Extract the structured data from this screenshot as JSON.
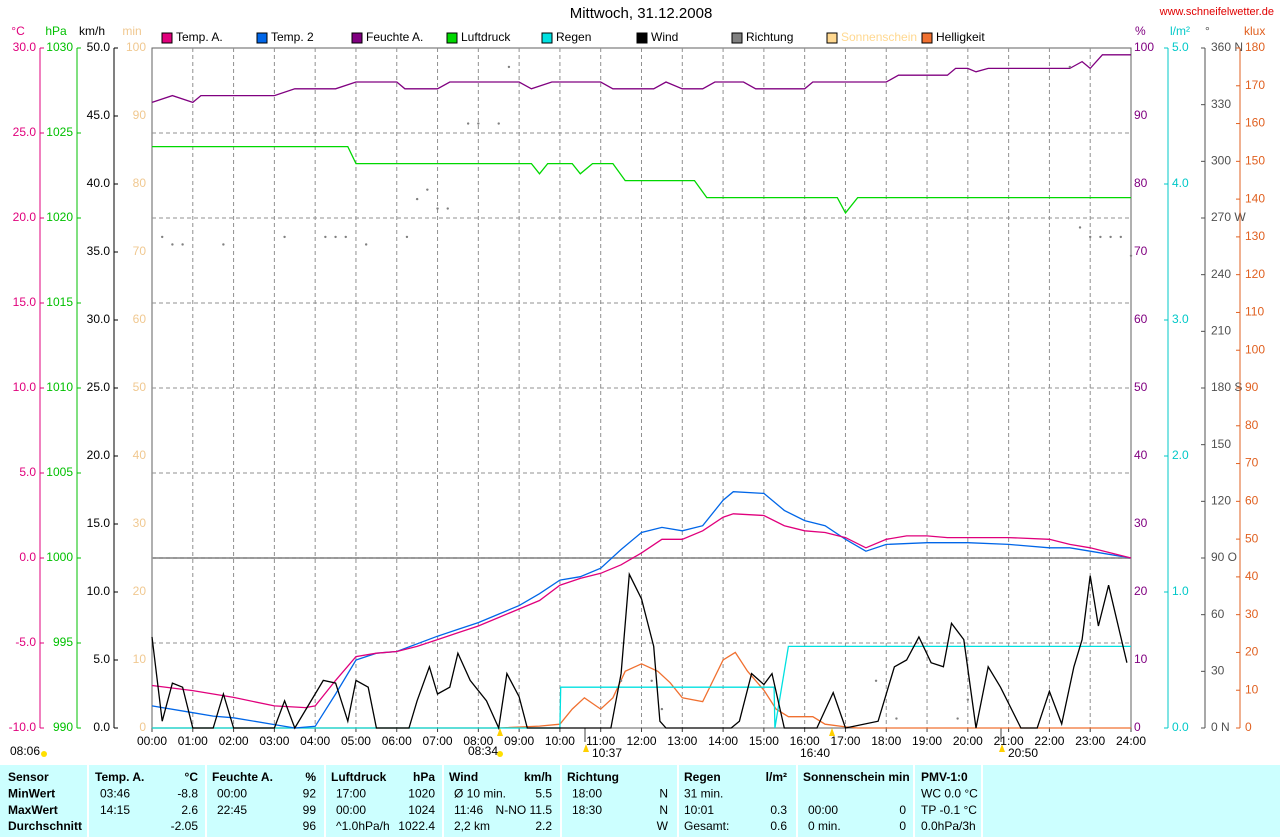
{
  "chart_data": {
    "type": "line",
    "title": "Mittwoch, 31.12.2008",
    "source": "www.schneifelwetter.de",
    "xlim": [
      0,
      24
    ],
    "xticks": [
      {
        "value": 0,
        "label": "00:00"
      },
      {
        "value": 1,
        "label": "01:00"
      },
      {
        "value": 2,
        "label": "02:00"
      },
      {
        "value": 3,
        "label": "03:00"
      },
      {
        "value": 4,
        "label": "04:00"
      },
      {
        "value": 5,
        "label": "05:00"
      },
      {
        "value": 6,
        "label": "06:00"
      },
      {
        "value": 7,
        "label": "07:00"
      },
      {
        "value": 8,
        "label": "08:00"
      },
      {
        "value": 9,
        "label": "09:00"
      },
      {
        "value": 10,
        "label": "10:00"
      },
      {
        "value": 11,
        "label": "11:00"
      },
      {
        "value": 12,
        "label": "12:00"
      },
      {
        "value": 13,
        "label": "13:00"
      },
      {
        "value": 14,
        "label": "14:00"
      },
      {
        "value": 15,
        "label": "15:00"
      },
      {
        "value": 16,
        "label": "16:00"
      },
      {
        "value": 17,
        "label": "17:00"
      },
      {
        "value": 18,
        "label": "18:00"
      },
      {
        "value": 19,
        "label": "19:00"
      },
      {
        "value": 20,
        "label": "20:00"
      },
      {
        "value": 21,
        "label": "21:00"
      },
      {
        "value": 22,
        "label": "22:00"
      },
      {
        "value": 23,
        "label": "23:00"
      },
      {
        "value": 24,
        "label": "24:00"
      }
    ],
    "grid": true,
    "axes": {
      "temp": {
        "unit": "°C",
        "color": "#e0007c",
        "lim": [
          -10,
          30
        ],
        "ticks": [
          {
            "value": -10,
            "label": "-10.0"
          },
          {
            "value": -5,
            "label": "-5.0"
          },
          {
            "value": 0,
            "label": "0.0"
          },
          {
            "value": 5,
            "label": "5.0"
          },
          {
            "value": 10,
            "label": "10.0"
          },
          {
            "value": 15,
            "label": "15.0"
          },
          {
            "value": 20,
            "label": "20.0"
          },
          {
            "value": 25,
            "label": "25.0"
          },
          {
            "value": 30,
            "label": "30.0"
          }
        ]
      },
      "press": {
        "unit": "hPa",
        "color": "#00c000",
        "lim": [
          990,
          1030
        ],
        "ticks": [
          990,
          995,
          1000,
          1005,
          1010,
          1015,
          1020,
          1025,
          1030
        ]
      },
      "wind": {
        "unit": "km/h",
        "color": "#000000",
        "lim": [
          0,
          50
        ],
        "ticks": [
          {
            "value": 0,
            "label": "0.0"
          },
          {
            "value": 5,
            "label": "5.0"
          },
          {
            "value": 10,
            "label": "10.0"
          },
          {
            "value": 15,
            "label": "15.0"
          },
          {
            "value": 20,
            "label": "20.0"
          },
          {
            "value": 25,
            "label": "25.0"
          },
          {
            "value": 30,
            "label": "30.0"
          },
          {
            "value": 35,
            "label": "35.0"
          },
          {
            "value": 40,
            "label": "40.0"
          },
          {
            "value": 45,
            "label": "45.0"
          },
          {
            "value": 50,
            "label": "50.0"
          }
        ]
      },
      "sun": {
        "unit": "min",
        "color": "#f0c890",
        "lim": [
          0,
          100
        ],
        "ticks": [
          0,
          10,
          20,
          30,
          40,
          50,
          60,
          70,
          80,
          90,
          100
        ]
      },
      "hum": {
        "unit": "%",
        "color": "#800080",
        "lim": [
          0,
          100
        ],
        "ticks": [
          0,
          10,
          20,
          30,
          40,
          50,
          60,
          70,
          80,
          90,
          100
        ]
      },
      "rain": {
        "unit": "l/m²",
        "color": "#00c8c8",
        "lim": [
          0,
          5
        ],
        "ticks": [
          {
            "value": 0,
            "label": "0.0"
          },
          {
            "value": 1,
            "label": "1.0"
          },
          {
            "value": 2,
            "label": "2.0"
          },
          {
            "value": 3,
            "label": "3.0"
          },
          {
            "value": 4,
            "label": "4.0"
          },
          {
            "value": 5,
            "label": "5.0"
          }
        ]
      },
      "dir": {
        "unit": "°",
        "color": "#505050",
        "lim": [
          0,
          360
        ],
        "ticks": [
          {
            "value": 0,
            "label": "0 N"
          },
          30,
          60,
          {
            "value": 90,
            "label": "90 O"
          },
          120,
          150,
          {
            "value": 180,
            "label": "180 S"
          },
          210,
          240,
          {
            "value": 270,
            "label": "270 W"
          },
          300,
          330,
          {
            "value": 360,
            "label": "360 N"
          }
        ]
      },
      "lux": {
        "unit": "klux",
        "color": "#e06020",
        "lim": [
          0,
          180
        ],
        "ticks": [
          0,
          10,
          20,
          30,
          40,
          50,
          60,
          70,
          80,
          90,
          100,
          110,
          120,
          130,
          140,
          150,
          160,
          170,
          180
        ]
      }
    },
    "series": [
      {
        "name": "Temp. A.",
        "color": "#e0007c",
        "axis": "temp",
        "style": "line",
        "x": [
          0,
          1,
          2,
          3,
          3.76,
          4,
          4.5,
          5,
          5.5,
          6,
          6.5,
          7,
          7.5,
          8,
          8.5,
          9,
          9.5,
          10,
          10.5,
          11,
          11.5,
          12,
          12.5,
          13,
          13.5,
          14,
          14.25,
          15,
          15.5,
          16,
          16.5,
          17,
          17.5,
          18,
          18.5,
          19,
          19.5,
          20,
          21,
          22,
          22.5,
          23,
          24
        ],
        "values": [
          -7.5,
          -7.8,
          -8.2,
          -8.7,
          -8.8,
          -8.7,
          -7.2,
          -5.8,
          -5.6,
          -5.5,
          -5.2,
          -4.8,
          -4.4,
          -4.0,
          -3.5,
          -3.0,
          -2.5,
          -1.6,
          -1.2,
          -0.9,
          -0.4,
          0.3,
          1.1,
          1.1,
          1.6,
          2.4,
          2.6,
          2.5,
          1.9,
          1.6,
          1.5,
          1.2,
          0.6,
          1.1,
          1.3,
          1.3,
          1.2,
          1.2,
          1.2,
          1.1,
          0.8,
          0.6,
          0.0
        ]
      },
      {
        "name": "Temp. 2",
        "color": "#0066e8",
        "axis": "temp",
        "style": "line",
        "x": [
          0,
          1,
          1.5,
          2,
          3,
          3.5,
          4,
          4.5,
          5,
          5.5,
          6,
          7,
          7.5,
          8,
          8.5,
          9,
          9.5,
          10,
          10.5,
          11,
          11.5,
          12,
          12.5,
          13,
          13.5,
          14,
          14.25,
          15,
          15.5,
          16,
          16.5,
          17,
          17.5,
          18,
          19,
          20,
          21,
          22,
          22.5,
          23,
          24
        ],
        "values": [
          -8.7,
          -9.1,
          -9.3,
          -9.4,
          -9.8,
          -10.0,
          -9.9,
          -8.0,
          -6.0,
          -5.6,
          -5.5,
          -4.6,
          -4.2,
          -3.8,
          -3.3,
          -2.8,
          -2.1,
          -1.3,
          -1.1,
          -0.6,
          0.5,
          1.5,
          1.8,
          1.6,
          1.9,
          3.4,
          3.9,
          3.8,
          2.8,
          2.2,
          1.9,
          1.1,
          0.4,
          0.8,
          0.9,
          0.9,
          0.8,
          0.6,
          0.6,
          0.4,
          0.0
        ]
      },
      {
        "name": "Feuchte A.",
        "color": "#800080",
        "axis": "hum",
        "style": "line",
        "x": [
          0,
          0.5,
          1,
          1.2,
          3,
          3.5,
          4.5,
          5,
          6,
          6.2,
          7,
          7.3,
          9,
          9.3,
          9.8,
          11,
          11.3,
          12.3,
          12.6,
          13,
          13.5,
          13.8,
          14.5,
          14.8,
          16,
          16.2,
          18,
          18.3,
          19.5,
          19.7,
          20,
          20.2,
          20.5,
          22.5,
          22.8,
          23,
          23.3,
          24
        ],
        "values": [
          92,
          93,
          92,
          93,
          93,
          94,
          94,
          95,
          95,
          94,
          94,
          95,
          95,
          94,
          95,
          95,
          94,
          94,
          95,
          94,
          94,
          95,
          95,
          94,
          94,
          95,
          95,
          96,
          96,
          97,
          97,
          96.5,
          97,
          97,
          98,
          97,
          99,
          99
        ]
      },
      {
        "name": "Luftdruck",
        "color": "#00d800",
        "axis": "press",
        "style": "line",
        "x": [
          0,
          4.8,
          5,
          9.3,
          9.5,
          9.7,
          10.3,
          10.5,
          10.8,
          11.3,
          11.6,
          13.3,
          13.6,
          16.8,
          17,
          17.3,
          24
        ],
        "values": [
          1024.2,
          1024.2,
          1023.2,
          1023.2,
          1022.6,
          1023.2,
          1023.2,
          1022.6,
          1023.2,
          1023.2,
          1022.2,
          1022.2,
          1021.2,
          1021.2,
          1020.3,
          1021.2,
          1021.2
        ]
      },
      {
        "name": "Regen",
        "color": "#00e0e0",
        "axis": "rain",
        "style": "line",
        "x": [
          0,
          10,
          10.02,
          15.25,
          15.27,
          15.6,
          24
        ],
        "values": [
          0,
          0,
          0.3,
          0.3,
          0,
          0.6,
          0.6
        ]
      },
      {
        "name": "Wind",
        "color": "#000000",
        "axis": "wind",
        "style": "line",
        "x": [
          0,
          0.25,
          0.5,
          0.75,
          1,
          1.5,
          1.75,
          2,
          3,
          3.25,
          3.5,
          4.2,
          4.5,
          4.8,
          5,
          5.3,
          5.5,
          6.3,
          6.5,
          6.8,
          7,
          7.3,
          7.5,
          7.8,
          8.2,
          8.5,
          8.7,
          9,
          9.2,
          11.25,
          11.5,
          11.7,
          12,
          12.3,
          12.45,
          12.6,
          14.2,
          14.4,
          14.7,
          15,
          15.2,
          15.5,
          16.3,
          16.7,
          17,
          17.8,
          18.2,
          18.5,
          18.8,
          19.1,
          19.4,
          19.6,
          19.9,
          20.2,
          20.5,
          20.8,
          21.3,
          21.7,
          22,
          22.3,
          22.6,
          22.8,
          23,
          23.2,
          23.45,
          23.9
        ],
        "values": [
          6.7,
          0.5,
          3.3,
          3,
          0,
          0,
          2.5,
          0,
          0,
          2,
          0,
          3.5,
          3.3,
          0.5,
          3.5,
          3,
          0,
          0,
          2,
          4.5,
          2.5,
          3,
          5.5,
          3.5,
          2,
          0,
          4,
          2.3,
          0,
          0,
          4,
          11.3,
          9.5,
          6,
          0.5,
          0,
          0,
          0.5,
          4,
          3.2,
          4,
          0,
          0,
          2.6,
          0,
          0.5,
          4.5,
          5,
          6.7,
          4.8,
          4.5,
          7.7,
          6.5,
          0,
          4.5,
          3,
          0,
          0,
          2.7,
          0.3,
          4.5,
          6.5,
          11.2,
          7.5,
          10.5,
          4.8
        ]
      },
      {
        "name": "Richtung",
        "color": "#808080",
        "axis": "dir",
        "style": "dots",
        "x": [
          0.25,
          0.5,
          0.75,
          1.75,
          3.25,
          4.25,
          4.5,
          4.75,
          5.25,
          6.25,
          6.5,
          6.75,
          7,
          7.25,
          7.75,
          8,
          8.5,
          8.75,
          11.5,
          12.25,
          12.5,
          17.75,
          18.25,
          19.75,
          20,
          22.5,
          22.75,
          23,
          23.25,
          23.5,
          23.75,
          24
        ],
        "values": [
          260,
          256,
          256,
          256,
          260,
          260,
          260,
          260,
          256,
          260,
          280,
          285,
          275,
          275,
          320,
          320,
          320,
          350,
          25,
          25,
          10,
          25,
          5,
          5,
          15,
          350,
          265,
          260,
          260,
          260,
          260,
          250
        ]
      },
      {
        "name": "Sonnenschein",
        "color": "#ffd890"
      },
      {
        "name": "Helligkeit",
        "color": "#f07030",
        "axis": "lux",
        "style": "line",
        "x": [
          0,
          8.5,
          9.5,
          10,
          10.3,
          10.6,
          11,
          11.3,
          11.6,
          12,
          12.4,
          12.7,
          13,
          13.5,
          14,
          14.3,
          14.6,
          15,
          15.3,
          15.6,
          16.2,
          16.5,
          17,
          17.3,
          24
        ],
        "values": [
          0,
          0,
          0.5,
          1,
          5,
          8,
          5,
          8,
          15,
          17,
          15,
          12,
          8,
          7,
          18,
          20,
          15,
          10,
          5,
          3,
          3,
          1,
          0.3,
          0,
          0
        ]
      }
    ],
    "annotations": [
      "08:06",
      "08:34",
      "10:37",
      "16:40",
      "20:50"
    ]
  },
  "table": {
    "rows": [
      [
        "Sensor",
        "Temp. A.",
        "°C",
        "Feuchte A.",
        "%",
        "Luftdruck",
        "hPa",
        "Wind",
        "km/h",
        "Richtung",
        null,
        "Regen",
        "l/m²",
        "Sonnenschein min",
        null,
        "PMV-1:0"
      ],
      [
        "MinWert",
        "03:46",
        "-8.8",
        "00:00",
        "92",
        "17:00",
        "1020",
        "Ø 10 min.",
        "5.5",
        "18:00",
        "N",
        "31 min.",
        null,
        null,
        null,
        "WC 0.0 °C"
      ],
      [
        "MaxWert",
        "14:15",
        "2.6",
        "22:45",
        "99",
        "00:00",
        "1024",
        "11:46",
        "N-NO 11.5",
        "18:30",
        "N",
        "10:01",
        "0.3",
        "00:00",
        "0",
        "TP -0.1 °C"
      ],
      [
        "Durchschnitt",
        null,
        "-2.05",
        null,
        "96",
        "^1.0hPa/h",
        "1022.4",
        "2,2 km",
        "2.2",
        null,
        "W",
        "Gesamt:",
        "0.6",
        "0 min.",
        "0",
        "0.0hPa/3h"
      ]
    ]
  }
}
